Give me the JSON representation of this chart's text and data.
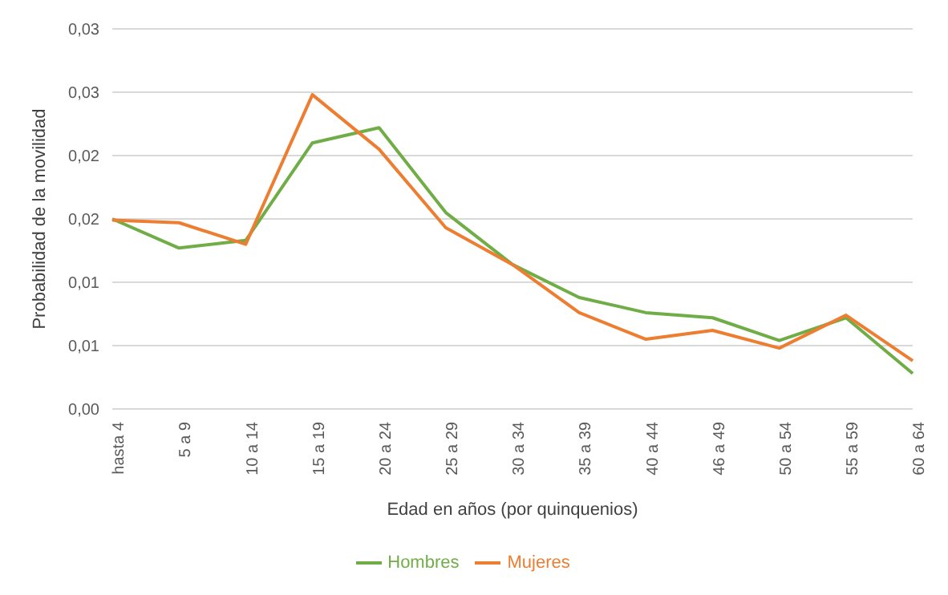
{
  "chart_data": {
    "type": "line",
    "xlabel": "Edad en años (por quinquenios)",
    "ylabel": "Probabilidad de la movilidad",
    "categories": [
      "hasta 4",
      "5 a 9",
      "10 a 14",
      "15 a 19",
      "20 a 24",
      "25 a 29",
      "30 a 34",
      "35 a 39",
      "40 a 44",
      "46 a 49",
      "50 a 54",
      "55 a 59",
      "60 a 64"
    ],
    "series": [
      {
        "name": "Hombres",
        "color": "#70ad47",
        "values": [
          0.015,
          0.0127,
          0.0133,
          0.021,
          0.0222,
          0.0155,
          0.0114,
          0.0088,
          0.0076,
          0.0072,
          0.0054,
          0.0072,
          0.0028
        ]
      },
      {
        "name": "Mujeres",
        "color": "#ed7d31",
        "values": [
          0.0149,
          0.0147,
          0.013,
          0.0248,
          0.0205,
          0.0143,
          0.0114,
          0.0076,
          0.0055,
          0.0062,
          0.0048,
          0.0074,
          0.0038
        ]
      }
    ],
    "ylim": [
      0,
      0.03
    ],
    "yticks": [
      {
        "value": 0,
        "label": "0,00"
      },
      {
        "value": 0.005,
        "label": "0,01"
      },
      {
        "value": 0.01,
        "label": "0,01"
      },
      {
        "value": 0.015,
        "label": "0,02"
      },
      {
        "value": 0.02,
        "label": "0,02"
      },
      {
        "value": 0.025,
        "label": "0,03"
      },
      {
        "value": 0.03,
        "label": "0,03"
      }
    ],
    "grid": "y",
    "legend": "bottom",
    "marker": "none",
    "line_style": "solid"
  }
}
